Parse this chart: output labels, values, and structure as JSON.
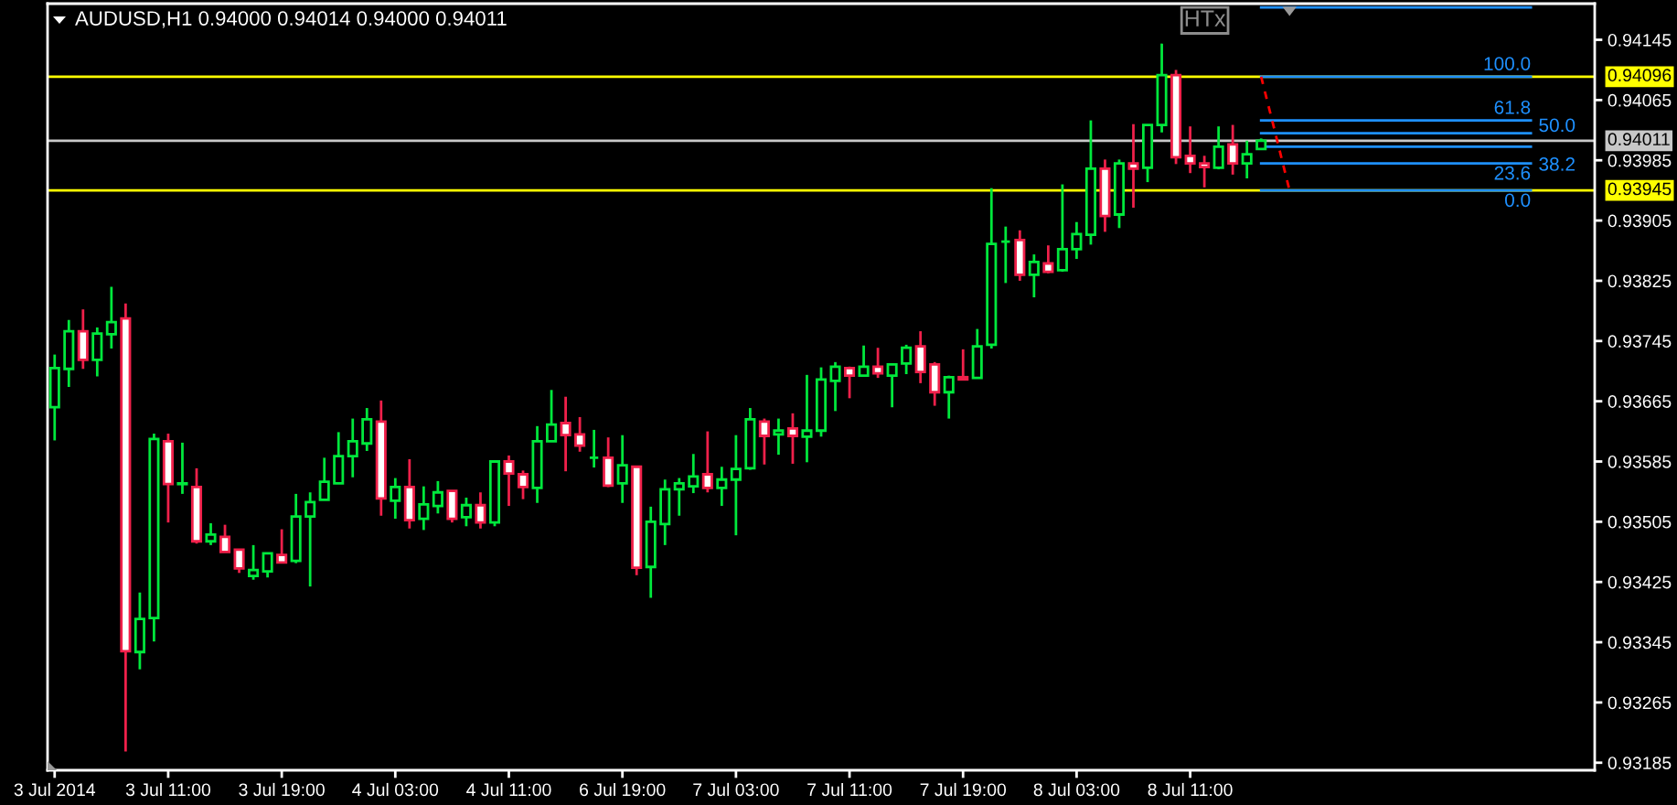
{
  "chart_data": {
    "type": "candlestick",
    "title": "AUDUSD,H1 0.94000 0.94014 0.94000 0.94011",
    "categories": [
      "3 Jul 2014",
      null,
      null,
      null,
      null,
      null,
      null,
      null,
      "3 Jul 11:00",
      null,
      null,
      null,
      null,
      null,
      null,
      null,
      "3 Jul 19:00",
      null,
      null,
      null,
      null,
      null,
      null,
      null,
      "4 Jul 03:00",
      null,
      null,
      null,
      null,
      null,
      null,
      null,
      "4 Jul 11:00",
      null,
      null,
      null,
      null,
      null,
      null,
      null,
      "6 Jul 19:00",
      null,
      null,
      null,
      null,
      null,
      null,
      null,
      "7 Jul 03:00",
      null,
      null,
      null,
      null,
      null,
      null,
      null,
      "7 Jul 11:00",
      null,
      null,
      null,
      null,
      null,
      null,
      null,
      "7 Jul 19:00",
      null,
      null,
      null,
      null,
      null,
      null,
      null,
      "8 Jul 03:00",
      null,
      null,
      null,
      null,
      null,
      null,
      null,
      "8 Jul 11:00",
      null,
      null,
      null,
      null,
      null,
      null,
      null,
      null,
      null,
      null,
      null,
      null,
      null,
      null,
      null,
      null,
      null,
      null,
      null,
      null,
      null,
      null,
      null,
      null,
      null,
      null,
      null,
      null
    ],
    "ohlc": [
      [
        0.93657,
        0.93727,
        0.93613,
        0.93709
      ],
      [
        0.93708,
        0.93773,
        0.93684,
        0.93758
      ],
      [
        0.93758,
        0.93787,
        0.93708,
        0.9372
      ],
      [
        0.9372,
        0.93763,
        0.93698,
        0.93755
      ],
      [
        0.93754,
        0.93817,
        0.93735,
        0.9377
      ],
      [
        0.93775,
        0.93795,
        0.932,
        0.93333
      ],
      [
        0.93332,
        0.93411,
        0.93309,
        0.93376
      ],
      [
        0.93377,
        0.93622,
        0.93346,
        0.93615
      ],
      [
        0.93612,
        0.93622,
        0.93504,
        0.93555
      ],
      [
        0.93555,
        0.9361,
        0.93542,
        0.93556
      ],
      [
        0.93551,
        0.93576,
        0.93476,
        0.93479
      ],
      [
        0.93479,
        0.93503,
        0.93474,
        0.93488
      ],
      [
        0.93485,
        0.93501,
        0.93465,
        0.93465
      ],
      [
        0.93468,
        0.93468,
        0.93437,
        0.93443
      ],
      [
        0.93433,
        0.93474,
        0.93428,
        0.93441
      ],
      [
        0.93439,
        0.93463,
        0.93431,
        0.93463
      ],
      [
        0.93461,
        0.93495,
        0.93451,
        0.93451
      ],
      [
        0.93453,
        0.93542,
        0.9345,
        0.93512
      ],
      [
        0.93512,
        0.93544,
        0.93419,
        0.93531
      ],
      [
        0.93534,
        0.9359,
        0.93534,
        0.93558
      ],
      [
        0.93556,
        0.93624,
        0.93556,
        0.93592
      ],
      [
        0.93592,
        0.93642,
        0.93564,
        0.93612
      ],
      [
        0.93609,
        0.93656,
        0.93599,
        0.93641
      ],
      [
        0.93638,
        0.93666,
        0.93513,
        0.93536
      ],
      [
        0.93533,
        0.93563,
        0.93509,
        0.93551
      ],
      [
        0.93551,
        0.93588,
        0.93496,
        0.93507
      ],
      [
        0.93509,
        0.93552,
        0.93494,
        0.93528
      ],
      [
        0.93526,
        0.93559,
        0.93516,
        0.93544
      ],
      [
        0.93546,
        0.93546,
        0.93504,
        0.93509
      ],
      [
        0.93511,
        0.93537,
        0.93499,
        0.93527
      ],
      [
        0.93527,
        0.93544,
        0.93496,
        0.93504
      ],
      [
        0.93504,
        0.93585,
        0.93499,
        0.93585
      ],
      [
        0.93585,
        0.93593,
        0.93526,
        0.93569
      ],
      [
        0.93568,
        0.93573,
        0.93535,
        0.93551
      ],
      [
        0.9355,
        0.93632,
        0.9353,
        0.93612
      ],
      [
        0.93612,
        0.9368,
        0.93612,
        0.93634
      ],
      [
        0.93636,
        0.93671,
        0.93572,
        0.9362
      ],
      [
        0.93621,
        0.93644,
        0.93598,
        0.93606
      ],
      [
        0.9359,
        0.93627,
        0.93577,
        0.9359
      ],
      [
        0.9359,
        0.93617,
        0.93551,
        0.93553
      ],
      [
        0.93556,
        0.9362,
        0.9353,
        0.9358
      ],
      [
        0.93578,
        0.93578,
        0.93434,
        0.93444
      ],
      [
        0.93445,
        0.93525,
        0.93404,
        0.93505
      ],
      [
        0.93502,
        0.93561,
        0.93474,
        0.93548
      ],
      [
        0.93548,
        0.93563,
        0.93513,
        0.93556
      ],
      [
        0.93552,
        0.93595,
        0.93543,
        0.93565
      ],
      [
        0.93568,
        0.93625,
        0.93544,
        0.9355
      ],
      [
        0.9355,
        0.93578,
        0.93526,
        0.93561
      ],
      [
        0.93561,
        0.9362,
        0.93487,
        0.93575
      ],
      [
        0.93576,
        0.93656,
        0.93574,
        0.93641
      ],
      [
        0.93638,
        0.93642,
        0.93581,
        0.93619
      ],
      [
        0.93621,
        0.93642,
        0.93594,
        0.93626
      ],
      [
        0.93629,
        0.93649,
        0.93582,
        0.93619
      ],
      [
        0.93618,
        0.937,
        0.93584,
        0.93626
      ],
      [
        0.93626,
        0.9371,
        0.93618,
        0.93694
      ],
      [
        0.93692,
        0.93717,
        0.93652,
        0.93711
      ],
      [
        0.93709,
        0.93711,
        0.93669,
        0.93699
      ],
      [
        0.93699,
        0.93739,
        0.93699,
        0.93711
      ],
      [
        0.93711,
        0.93736,
        0.93696,
        0.93702
      ],
      [
        0.93699,
        0.93714,
        0.93657,
        0.93714
      ],
      [
        0.93715,
        0.9374,
        0.93701,
        0.93736
      ],
      [
        0.93738,
        0.93758,
        0.93689,
        0.93704
      ],
      [
        0.93714,
        0.93717,
        0.93659,
        0.93677
      ],
      [
        0.93677,
        0.93699,
        0.93642,
        0.93697
      ],
      [
        0.93697,
        0.93734,
        0.93694,
        0.93694
      ],
      [
        0.93696,
        0.93761,
        0.93696,
        0.93738
      ],
      [
        0.9374,
        0.93948,
        0.93735,
        0.93874
      ],
      [
        0.93877,
        0.93897,
        0.93822,
        0.93877
      ],
      [
        0.93879,
        0.93892,
        0.93825,
        0.93833
      ],
      [
        0.93833,
        0.9386,
        0.93803,
        0.9385
      ],
      [
        0.93848,
        0.93872,
        0.93835,
        0.93837
      ],
      [
        0.93839,
        0.93953,
        0.93837,
        0.93867
      ],
      [
        0.93867,
        0.93903,
        0.93854,
        0.93887
      ],
      [
        0.93886,
        0.94038,
        0.93873,
        0.93974
      ],
      [
        0.93974,
        0.93986,
        0.9389,
        0.93911
      ],
      [
        0.93913,
        0.93986,
        0.93895,
        0.93981
      ],
      [
        0.93981,
        0.94033,
        0.93922,
        0.93974
      ],
      [
        0.93975,
        0.94032,
        0.93956,
        0.94032
      ],
      [
        0.94032,
        0.9414,
        0.94022,
        0.94098
      ],
      [
        0.94098,
        0.94105,
        0.9398,
        0.93989
      ],
      [
        0.93991,
        0.9403,
        0.93968,
        0.93981
      ],
      [
        0.93981,
        0.93991,
        0.93949,
        0.93976
      ],
      [
        0.93975,
        0.9403,
        0.93973,
        0.94003
      ],
      [
        0.94006,
        0.94032,
        0.93966,
        0.93981
      ],
      [
        0.93981,
        0.94011,
        0.93961,
        0.93993
      ],
      [
        0.94,
        0.94014,
        0.94,
        0.94011
      ],
      null,
      null,
      null,
      null,
      null,
      null,
      null,
      null,
      null,
      null,
      null,
      null,
      null,
      null,
      null,
      null,
      null,
      null,
      null,
      null,
      null,
      null,
      null
    ],
    "colors": [
      "#00e83c",
      "#00e83c",
      "#f0204a",
      "#00e83c",
      "#00e83c",
      "#f0204a",
      "#00e83c",
      "#00e83c",
      "#f0204a",
      "#00e83c",
      "#f0204a",
      "#00e83c",
      "#f0204a",
      "#f0204a",
      "#00e83c",
      "#00e83c",
      "#f0204a",
      "#00e83c",
      "#00e83c",
      "#00e83c",
      "#00e83c",
      "#00e83c",
      "#00e83c",
      "#f0204a",
      "#00e83c",
      "#f0204a",
      "#00e83c",
      "#00e83c",
      "#f0204a",
      "#00e83c",
      "#f0204a",
      "#00e83c",
      "#f0204a",
      "#f0204a",
      "#00e83c",
      "#00e83c",
      "#f0204a",
      "#f0204a",
      "#00e83c",
      "#f0204a",
      "#00e83c",
      "#f0204a",
      "#00e83c",
      "#00e83c",
      "#00e83c",
      "#00e83c",
      "#f0204a",
      "#00e83c",
      "#00e83c",
      "#00e83c",
      "#f0204a",
      "#00e83c",
      "#f0204a",
      "#00e83c",
      "#00e83c",
      "#00e83c",
      "#f0204a",
      "#00e83c",
      "#f0204a",
      "#00e83c",
      "#00e83c",
      "#f0204a",
      "#f0204a",
      "#00e83c",
      "#f0204a",
      "#00e83c",
      "#00e83c",
      "#00e83c",
      "#f0204a",
      "#00e83c",
      "#f0204a",
      "#00e83c",
      "#00e83c",
      "#00e83c",
      "#f0204a",
      "#00e83c",
      "#f0204a",
      "#00e83c",
      "#00e83c",
      "#f0204a",
      "#f0204a",
      "#f0204a",
      "#00e83c",
      "#f0204a",
      "#00e83c",
      "#00e83c",
      null,
      null,
      null,
      null,
      null,
      null,
      null,
      null,
      null,
      null,
      null,
      null,
      null,
      null,
      null,
      null,
      null,
      null,
      null,
      null,
      null,
      null,
      null
    ],
    "series": [
      {
        "type": "line",
        "name": "100.0",
        "color": "#1e90ff",
        "values": [
          null,
          null,
          null,
          null,
          null,
          null,
          null,
          null,
          null,
          null,
          null,
          null,
          null,
          null,
          null,
          null,
          null,
          null,
          null,
          null,
          null,
          null,
          null,
          null,
          null,
          null,
          null,
          null,
          null,
          null,
          null,
          null,
          null,
          null,
          null,
          null,
          null,
          null,
          null,
          null,
          null,
          null,
          null,
          null,
          null,
          null,
          null,
          null,
          null,
          null,
          null,
          null,
          null,
          null,
          null,
          null,
          null,
          null,
          null,
          null,
          null,
          null,
          null,
          null,
          null,
          null,
          null,
          null,
          null,
          null,
          null,
          null,
          null,
          null,
          null,
          null,
          null,
          null,
          null,
          null,
          null,
          null,
          null,
          null,
          null,
          0.94096,
          0.94096,
          0.94096,
          0.94096,
          0.94096,
          0.94096,
          0.94096,
          0.94096,
          0.94096,
          0.94096,
          0.94096,
          0.94096,
          0.94096,
          0.94096,
          0.94096,
          0.94096,
          0.94096,
          0.94096,
          0.94096,
          0.94096,
          null,
          null,
          null,
          null
        ]
      },
      {
        "type": "line",
        "name": "61.8",
        "color": "#1e90ff",
        "values": [
          null,
          null,
          null,
          null,
          null,
          null,
          null,
          null,
          null,
          null,
          null,
          null,
          null,
          null,
          null,
          null,
          null,
          null,
          null,
          null,
          null,
          null,
          null,
          null,
          null,
          null,
          null,
          null,
          null,
          null,
          null,
          null,
          null,
          null,
          null,
          null,
          null,
          null,
          null,
          null,
          null,
          null,
          null,
          null,
          null,
          null,
          null,
          null,
          null,
          null,
          null,
          null,
          null,
          null,
          null,
          null,
          null,
          null,
          null,
          null,
          null,
          null,
          null,
          null,
          null,
          null,
          null,
          null,
          null,
          null,
          null,
          null,
          null,
          null,
          null,
          null,
          null,
          null,
          null,
          null,
          null,
          null,
          null,
          null,
          null,
          0.94038,
          0.94038,
          0.94038,
          0.94038,
          0.94038,
          0.94038,
          0.94038,
          0.94038,
          0.94038,
          0.94038,
          0.94038,
          0.94038,
          0.94038,
          0.94038,
          0.94038,
          0.94038,
          0.94038,
          0.94038,
          0.94038,
          0.94038,
          null,
          null,
          null,
          null
        ]
      },
      {
        "type": "line",
        "name": "50.0",
        "color": "#1e90ff",
        "values": [
          null,
          null,
          null,
          null,
          null,
          null,
          null,
          null,
          null,
          null,
          null,
          null,
          null,
          null,
          null,
          null,
          null,
          null,
          null,
          null,
          null,
          null,
          null,
          null,
          null,
          null,
          null,
          null,
          null,
          null,
          null,
          null,
          null,
          null,
          null,
          null,
          null,
          null,
          null,
          null,
          null,
          null,
          null,
          null,
          null,
          null,
          null,
          null,
          null,
          null,
          null,
          null,
          null,
          null,
          null,
          null,
          null,
          null,
          null,
          null,
          null,
          null,
          null,
          null,
          null,
          null,
          null,
          null,
          null,
          null,
          null,
          null,
          null,
          null,
          null,
          null,
          null,
          null,
          null,
          null,
          null,
          null,
          null,
          null,
          null,
          0.94021,
          0.94021,
          0.94021,
          0.94021,
          0.94021,
          0.94021,
          0.94021,
          0.94021,
          0.94021,
          0.94021,
          0.94021,
          0.94021,
          0.94021,
          0.94021,
          0.94021,
          0.94021,
          0.94021,
          0.94021,
          0.94021,
          0.94021,
          null,
          null,
          null,
          null
        ]
      },
      {
        "type": "line",
        "name": "38.2",
        "color": "#1e90ff",
        "values": [
          null,
          null,
          null,
          null,
          null,
          null,
          null,
          null,
          null,
          null,
          null,
          null,
          null,
          null,
          null,
          null,
          null,
          null,
          null,
          null,
          null,
          null,
          null,
          null,
          null,
          null,
          null,
          null,
          null,
          null,
          null,
          null,
          null,
          null,
          null,
          null,
          null,
          null,
          null,
          null,
          null,
          null,
          null,
          null,
          null,
          null,
          null,
          null,
          null,
          null,
          null,
          null,
          null,
          null,
          null,
          null,
          null,
          null,
          null,
          null,
          null,
          null,
          null,
          null,
          null,
          null,
          null,
          null,
          null,
          null,
          null,
          null,
          null,
          null,
          null,
          null,
          null,
          null,
          null,
          null,
          null,
          null,
          null,
          null,
          null,
          0.94003,
          0.94003,
          0.94003,
          0.94003,
          0.94003,
          0.94003,
          0.94003,
          0.94003,
          0.94003,
          0.94003,
          0.94003,
          0.94003,
          0.94003,
          0.94003,
          0.94003,
          0.94003,
          0.94003,
          0.94003,
          0.94003,
          0.94003,
          null,
          null,
          null,
          null
        ]
      },
      {
        "type": "line",
        "name": "23.6",
        "color": "#1e90ff",
        "values": [
          null,
          null,
          null,
          null,
          null,
          null,
          null,
          null,
          null,
          null,
          null,
          null,
          null,
          null,
          null,
          null,
          null,
          null,
          null,
          null,
          null,
          null,
          null,
          null,
          null,
          null,
          null,
          null,
          null,
          null,
          null,
          null,
          null,
          null,
          null,
          null,
          null,
          null,
          null,
          null,
          null,
          null,
          null,
          null,
          null,
          null,
          null,
          null,
          null,
          null,
          null,
          null,
          null,
          null,
          null,
          null,
          null,
          null,
          null,
          null,
          null,
          null,
          null,
          null,
          null,
          null,
          null,
          null,
          null,
          null,
          null,
          null,
          null,
          null,
          null,
          null,
          null,
          null,
          null,
          null,
          null,
          null,
          null,
          null,
          null,
          0.93981,
          0.93981,
          0.93981,
          0.93981,
          0.93981,
          0.93981,
          0.93981,
          0.93981,
          0.93981,
          0.93981,
          0.93981,
          0.93981,
          0.93981,
          0.93981,
          0.93981,
          0.93981,
          0.93981,
          0.93981,
          0.93981,
          0.93981,
          null,
          null,
          null,
          null
        ]
      },
      {
        "type": "line",
        "name": "0.0",
        "color": "#1e90ff",
        "values": [
          null,
          null,
          null,
          null,
          null,
          null,
          null,
          null,
          null,
          null,
          null,
          null,
          null,
          null,
          null,
          null,
          null,
          null,
          null,
          null,
          null,
          null,
          null,
          null,
          null,
          null,
          null,
          null,
          null,
          null,
          null,
          null,
          null,
          null,
          null,
          null,
          null,
          null,
          null,
          null,
          null,
          null,
          null,
          null,
          null,
          null,
          null,
          null,
          null,
          null,
          null,
          null,
          null,
          null,
          null,
          null,
          null,
          null,
          null,
          null,
          null,
          null,
          null,
          null,
          null,
          null,
          null,
          null,
          null,
          null,
          null,
          null,
          null,
          null,
          null,
          null,
          null,
          null,
          null,
          null,
          null,
          null,
          null,
          null,
          null,
          0.93945,
          0.93945,
          0.93945,
          0.93945,
          0.93945,
          0.93945,
          0.93945,
          0.93945,
          0.93945,
          0.93945,
          0.93945,
          0.93945,
          0.93945,
          0.93945,
          0.93945,
          0.93945,
          0.93945,
          0.93945,
          0.93945,
          0.93945,
          null,
          null,
          null,
          null
        ]
      },
      {
        "type": "line",
        "color": "#ff0000",
        "line_style": "dashed",
        "values": [
          null,
          null,
          null,
          null,
          null,
          null,
          null,
          null,
          null,
          null,
          null,
          null,
          null,
          null,
          null,
          null,
          null,
          null,
          null,
          null,
          null,
          null,
          null,
          null,
          null,
          null,
          null,
          null,
          null,
          null,
          null,
          null,
          null,
          null,
          null,
          null,
          null,
          null,
          null,
          null,
          null,
          null,
          null,
          null,
          null,
          null,
          null,
          null,
          null,
          null,
          null,
          null,
          null,
          null,
          null,
          null,
          null,
          null,
          null,
          null,
          null,
          null,
          null,
          null,
          null,
          null,
          null,
          null,
          null,
          null,
          null,
          null,
          null,
          null,
          null,
          null,
          null,
          null,
          null,
          null,
          null,
          null,
          null,
          null,
          null,
          0.94096,
          0.94021,
          0.93945,
          null,
          null,
          null,
          null,
          null,
          null,
          null,
          null,
          null,
          null,
          null,
          null,
          null,
          null,
          null,
          null,
          null,
          null,
          null,
          null,
          null
        ]
      },
      {
        "type": "line",
        "color": "#1e90ff",
        "values": [
          null,
          null,
          null,
          null,
          null,
          null,
          null,
          null,
          null,
          null,
          null,
          null,
          null,
          null,
          null,
          null,
          null,
          null,
          null,
          null,
          null,
          null,
          null,
          null,
          null,
          null,
          null,
          null,
          null,
          null,
          null,
          null,
          null,
          null,
          null,
          null,
          null,
          null,
          null,
          null,
          null,
          null,
          null,
          null,
          null,
          null,
          null,
          null,
          null,
          null,
          null,
          null,
          null,
          null,
          null,
          null,
          null,
          null,
          null,
          null,
          null,
          null,
          null,
          null,
          null,
          null,
          null,
          null,
          null,
          null,
          null,
          null,
          null,
          null,
          null,
          null,
          null,
          null,
          null,
          null,
          null,
          null,
          null,
          null,
          null,
          0.94188,
          0.94188,
          0.94188,
          0.94188,
          0.94188,
          0.94188,
          0.94188,
          0.94188,
          0.94188,
          0.94188,
          0.94188,
          0.94188,
          0.94188,
          0.94188,
          0.94188,
          0.94188,
          0.94188,
          0.94188,
          0.94188,
          0.94188,
          null,
          null,
          null,
          null
        ]
      }
    ],
    "ref_lines": [
      {
        "axis": "y",
        "value": 0.94096,
        "label": "0.94096",
        "color": "#ffff00"
      },
      {
        "axis": "y",
        "value": 0.94011,
        "label": "0.94011",
        "color": "#c8c8c8"
      },
      {
        "axis": "y",
        "value": 0.93945,
        "label": "0.93945",
        "color": "#ffff00"
      }
    ],
    "annotations": [
      "HTx"
    ],
    "ylim": [
      0.93175,
      0.94193
    ],
    "yticks": [
      0.94145,
      0.94065,
      0.93985,
      0.93905,
      0.93825,
      0.93745,
      0.93665,
      0.93585,
      0.93505,
      0.93425,
      0.93345,
      0.93265,
      0.93185
    ]
  }
}
